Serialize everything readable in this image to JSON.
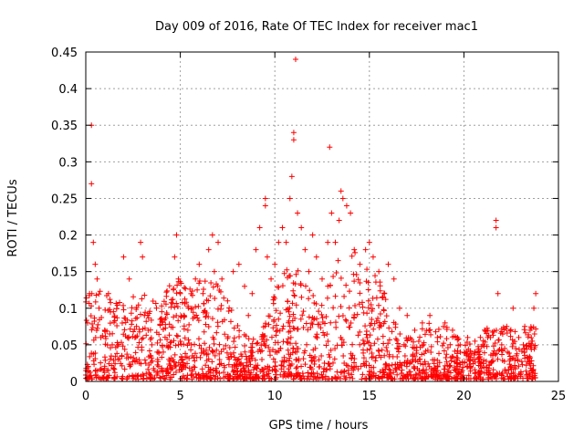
{
  "chart_data": {
    "type": "scatter",
    "title": "Day 009 of 2016, Rate Of TEC Index for receiver mac1",
    "xlabel": "GPS time / hours",
    "ylabel": "ROTI / TECUs",
    "xlim": [
      0,
      25
    ],
    "ylim": [
      0,
      0.45
    ],
    "xticks": [
      0,
      5,
      10,
      15,
      20,
      25
    ],
    "xtick_labels": [
      "0",
      "5",
      "10",
      "15",
      "20",
      "25"
    ],
    "yticks": [
      0,
      0.05,
      0.1,
      0.15,
      0.2,
      0.25,
      0.3,
      0.35,
      0.4,
      0.45
    ],
    "ytick_labels": [
      "0",
      "0.05",
      "0.1",
      "0.15",
      "0.2",
      "0.25",
      "0.3",
      "0.35",
      "0.4",
      "0.45"
    ],
    "grid": true,
    "marker": "+",
    "marker_color": "#ff0000",
    "series": [
      {
        "name": "ROTI",
        "x": [
          0.1,
          0.2,
          0.3,
          0.3,
          0.4,
          0.5,
          0.6,
          0.7,
          0.8,
          1.0,
          1.2,
          1.4,
          1.7,
          2.0,
          2.3,
          2.6,
          2.9,
          3.0,
          3.1,
          3.3,
          3.5,
          3.8,
          4.1,
          4.4,
          4.7,
          4.8,
          4.9,
          5.0,
          5.2,
          5.4,
          5.6,
          5.8,
          6.0,
          6.2,
          6.5,
          6.7,
          6.8,
          7.0,
          7.2,
          7.5,
          7.8,
          8.1,
          8.4,
          8.6,
          8.8,
          9.0,
          9.2,
          9.5,
          9.5,
          9.6,
          9.8,
          10.0,
          10.2,
          10.4,
          10.6,
          10.8,
          10.9,
          11.0,
          11.0,
          11.1,
          11.2,
          11.4,
          11.6,
          11.8,
          12.0,
          12.2,
          12.5,
          12.8,
          12.9,
          13.0,
          13.2,
          13.4,
          13.5,
          13.6,
          13.8,
          14.0,
          14.2,
          14.5,
          14.8,
          15.0,
          15.2,
          15.5,
          15.8,
          16.0,
          16.3,
          16.6,
          17.0,
          17.4,
          17.8,
          18.2,
          18.6,
          19.0,
          19.4,
          19.8,
          20.2,
          20.6,
          21.0,
          21.4,
          21.7,
          21.7,
          21.8,
          22.0,
          22.3,
          22.6,
          22.9,
          23.2,
          23.5,
          23.7,
          23.8
        ],
        "y": [
          0.08,
          0.12,
          0.27,
          0.35,
          0.19,
          0.16,
          0.14,
          0.1,
          0.06,
          0.07,
          0.12,
          0.05,
          0.03,
          0.17,
          0.14,
          0.06,
          0.19,
          0.17,
          0.09,
          0.07,
          0.05,
          0.03,
          0.04,
          0.03,
          0.17,
          0.2,
          0.14,
          0.12,
          0.09,
          0.07,
          0.1,
          0.14,
          0.16,
          0.12,
          0.18,
          0.2,
          0.15,
          0.19,
          0.14,
          0.11,
          0.15,
          0.16,
          0.13,
          0.09,
          0.12,
          0.18,
          0.21,
          0.25,
          0.24,
          0.17,
          0.14,
          0.16,
          0.19,
          0.21,
          0.19,
          0.25,
          0.28,
          0.34,
          0.33,
          0.44,
          0.23,
          0.21,
          0.18,
          0.15,
          0.2,
          0.17,
          0.14,
          0.19,
          0.32,
          0.23,
          0.19,
          0.22,
          0.26,
          0.25,
          0.24,
          0.23,
          0.18,
          0.16,
          0.18,
          0.19,
          0.17,
          0.15,
          0.12,
          0.16,
          0.14,
          0.1,
          0.09,
          0.07,
          0.08,
          0.09,
          0.06,
          0.08,
          0.07,
          0.05,
          0.06,
          0.04,
          0.05,
          0.06,
          0.22,
          0.21,
          0.12,
          0.05,
          0.04,
          0.1,
          0.06,
          0.04,
          0.07,
          0.1,
          0.12
        ]
      }
    ],
    "background_density": "dense cluster of points between 0 and ~0.15 across 0–24 h"
  }
}
